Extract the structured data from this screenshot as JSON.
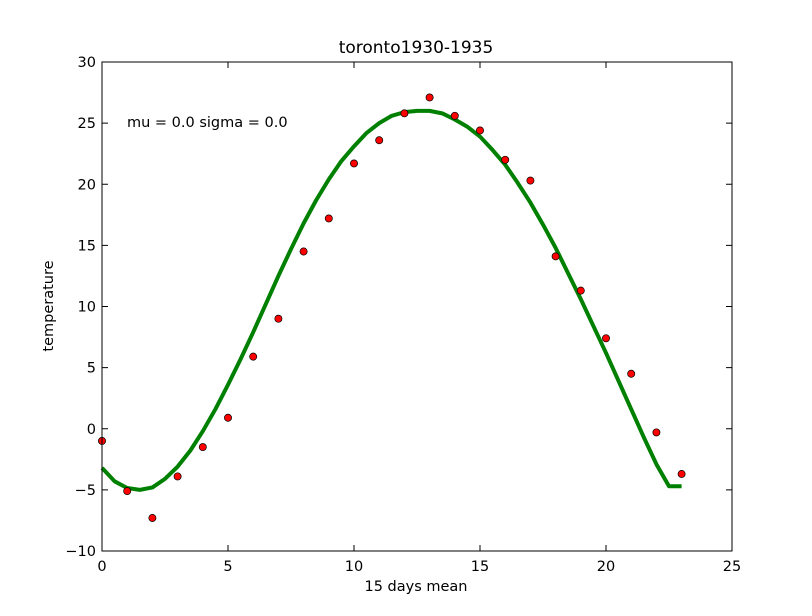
{
  "colors": {
    "background": "#ffffff",
    "axes": "#000000",
    "fit_line": "#008000",
    "points": "#ff0000",
    "point_edge": "#000000"
  },
  "chart_data": {
    "type": "scatter",
    "title": "toronto1930-1935",
    "xlabel": "15 days mean",
    "ylabel": "temperature",
    "annotation": "mu = 0.0 sigma = 0.0",
    "xlim": [
      0,
      25
    ],
    "ylim": [
      -10,
      30
    ],
    "xticks": [
      0,
      5,
      10,
      15,
      20,
      25
    ],
    "xtick_labels": [
      "0",
      "5",
      "10",
      "15",
      "20",
      "25"
    ],
    "yticks": [
      -10,
      -5,
      0,
      5,
      10,
      15,
      20,
      25,
      30
    ],
    "ytick_labels": [
      "−10",
      "−5",
      "0",
      "5",
      "10",
      "15",
      "20",
      "25",
      "30"
    ],
    "grid": false,
    "series": [
      {
        "kind": "scatter",
        "x": [
          0,
          1,
          2,
          3,
          4,
          5,
          6,
          7,
          8,
          9,
          10,
          11,
          12,
          13,
          14,
          15,
          16,
          17,
          18,
          19,
          20,
          21,
          22,
          23
        ],
        "y": [
          -1.0,
          -5.1,
          -7.3,
          -3.9,
          -1.5,
          0.9,
          5.9,
          9.0,
          14.5,
          17.2,
          21.7,
          23.6,
          25.8,
          27.1,
          25.6,
          24.4,
          22.0,
          20.3,
          14.1,
          11.3,
          7.4,
          4.5,
          -0.3,
          -3.7
        ]
      },
      {
        "kind": "line",
        "x": [
          0,
          0.5,
          1,
          1.5,
          2,
          2.5,
          3,
          3.5,
          4,
          4.5,
          5,
          5.5,
          6,
          6.5,
          7,
          7.5,
          8,
          8.5,
          9,
          9.5,
          10,
          10.5,
          11,
          11.5,
          12,
          12.5,
          13,
          13.5,
          14,
          14.5,
          15,
          15.5,
          16,
          16.5,
          17,
          17.5,
          18,
          18.5,
          19,
          19.5,
          20,
          20.5,
          21,
          21.5,
          22,
          22.5,
          23
        ],
        "y": [
          -3.2,
          -4.3,
          -4.85,
          -5.0,
          -4.8,
          -4.1,
          -3.1,
          -1.8,
          -0.2,
          1.6,
          3.6,
          5.7,
          7.9,
          10.2,
          12.5,
          14.7,
          16.8,
          18.7,
          20.4,
          21.9,
          23.1,
          24.2,
          25.0,
          25.6,
          25.9,
          26.0,
          26.0,
          25.8,
          25.3,
          24.7,
          23.9,
          22.8,
          21.6,
          20.1,
          18.5,
          16.7,
          14.8,
          12.7,
          10.6,
          8.4,
          6.2,
          3.9,
          1.6,
          -0.7,
          -2.9,
          -4.7,
          -4.7
        ]
      }
    ]
  }
}
